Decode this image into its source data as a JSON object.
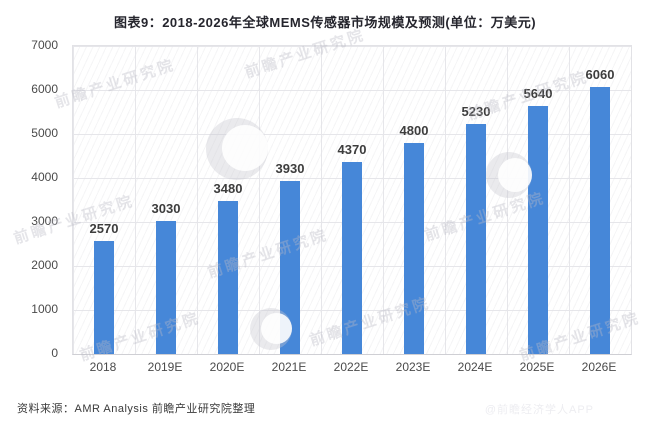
{
  "title": "图表9：2018-2026年全球MEMS传感器市场规模及预测(单位：万美元)",
  "source_note": "资料来源：AMR Analysis 前瞻产业研究院整理",
  "watermark": {
    "text": "前瞻产业研究院",
    "corner": "@前瞻经济学人APP"
  },
  "colors": {
    "bar": "#4687d8",
    "grid": "#e6e6ea",
    "title_text": "#25252d",
    "axis_text": "#4a4a4a",
    "value_label": "#3d3d3d",
    "watermark": "#babac4"
  },
  "chart_data": {
    "type": "bar",
    "categories": [
      "2018",
      "2019E",
      "2020E",
      "2021E",
      "2022E",
      "2023E",
      "2024E",
      "2025E",
      "2026E"
    ],
    "values": [
      2570,
      3030,
      3480,
      3930,
      4370,
      4800,
      5230,
      5640,
      6060
    ],
    "title": "图表9：2018-2026年全球MEMS传感器市场规模及预测(单位：万美元)",
    "xlabel": "",
    "ylabel": "",
    "ylim": [
      0,
      7000
    ],
    "yticks": [
      0,
      1000,
      2000,
      3000,
      4000,
      5000,
      6000,
      7000
    ],
    "grid": true,
    "legend": false,
    "bar_labels_shown": true
  }
}
